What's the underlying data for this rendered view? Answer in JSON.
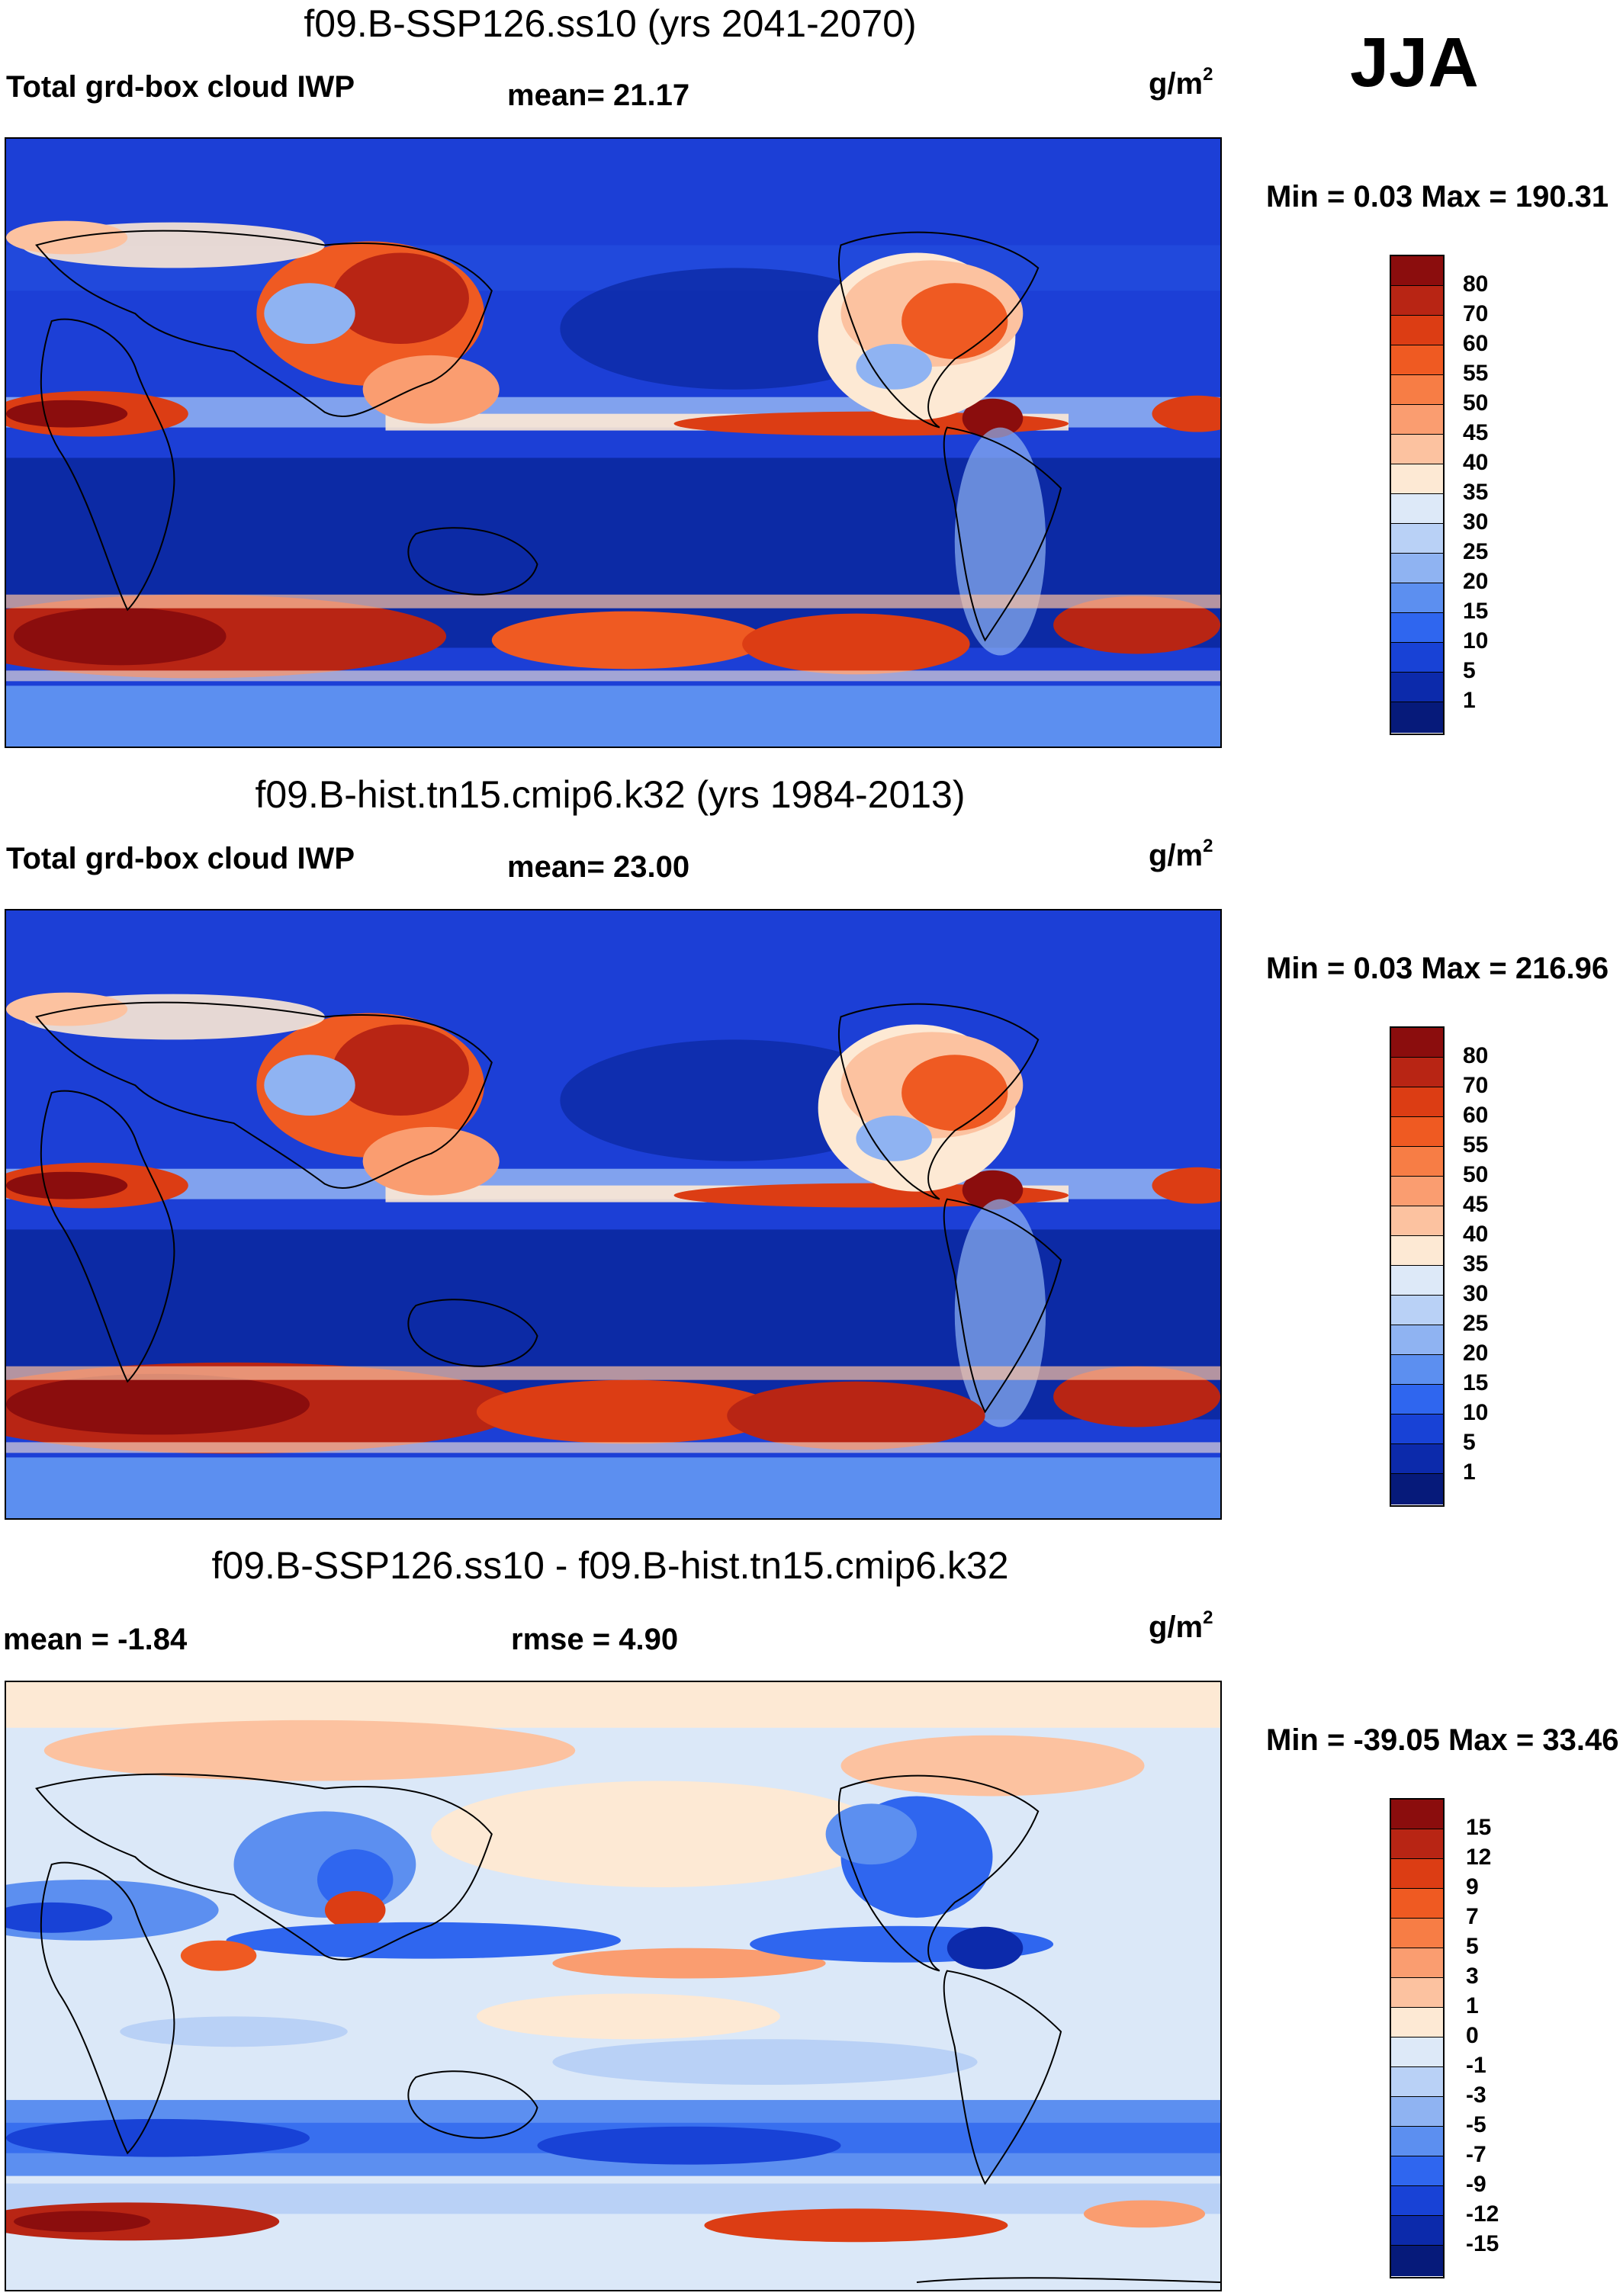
{
  "season_label": "JJA",
  "panels": [
    {
      "title": "f09.B-SSP126.ss10 (yrs 2041-2070)",
      "left_label": "Total grd-box cloud IWP",
      "mid_label": "mean=  21.17",
      "units_base": "g/m",
      "units_exp": "2",
      "minmax": "Min =   0.03 Max = 190.31"
    },
    {
      "title": "f09.B-hist.tn15.cmip6.k32 (yrs 1984-2013)",
      "left_label": "Total grd-box cloud IWP",
      "mid_label": "mean=  23.00",
      "units_base": "g/m",
      "units_exp": "2",
      "minmax": "Min =   0.03 Max = 216.96"
    },
    {
      "title": "f09.B-SSP126.ss10 - f09.B-hist.tn15.cmip6.k32",
      "left_label": "mean =  -1.84",
      "mid_label": "rmse =    4.90",
      "units_base": "g/m",
      "units_exp": "2",
      "minmax": "Min = -39.05 Max =  33.46"
    }
  ],
  "colorbars": {
    "abs": {
      "labels": [
        "80",
        "70",
        "60",
        "55",
        "50",
        "45",
        "40",
        "35",
        "30",
        "25",
        "20",
        "15",
        "10",
        "5",
        "1"
      ],
      "colors": [
        "#8b0d0d",
        "#b82514",
        "#dc3d14",
        "#ef5a22",
        "#f77d45",
        "#fa9d70",
        "#fcc2a0",
        "#fde9d4",
        "#dde9f8",
        "#b9d1f6",
        "#8fb3f2",
        "#5c8ff0",
        "#2f66ef",
        "#1842d6",
        "#0c2aab",
        "#061a7a"
      ]
    },
    "diff": {
      "labels": [
        "15",
        "12",
        "9",
        "7",
        "5",
        "3",
        "1",
        "0",
        "-1",
        "-3",
        "-5",
        "-7",
        "-9",
        "-12",
        "-15"
      ],
      "colors": [
        "#8b0d0d",
        "#b82514",
        "#dc3d14",
        "#ef5a22",
        "#f77d45",
        "#fa9d70",
        "#fcc2a0",
        "#fde9d4",
        "#dde9f8",
        "#b9d1f6",
        "#8fb3f2",
        "#5c8ff0",
        "#2f66ef",
        "#1842d6",
        "#0c2aab",
        "#061a7a"
      ]
    }
  },
  "maps": {
    "abs_background": "#1c3fd6",
    "diff_background": "#dbe8f8"
  }
}
